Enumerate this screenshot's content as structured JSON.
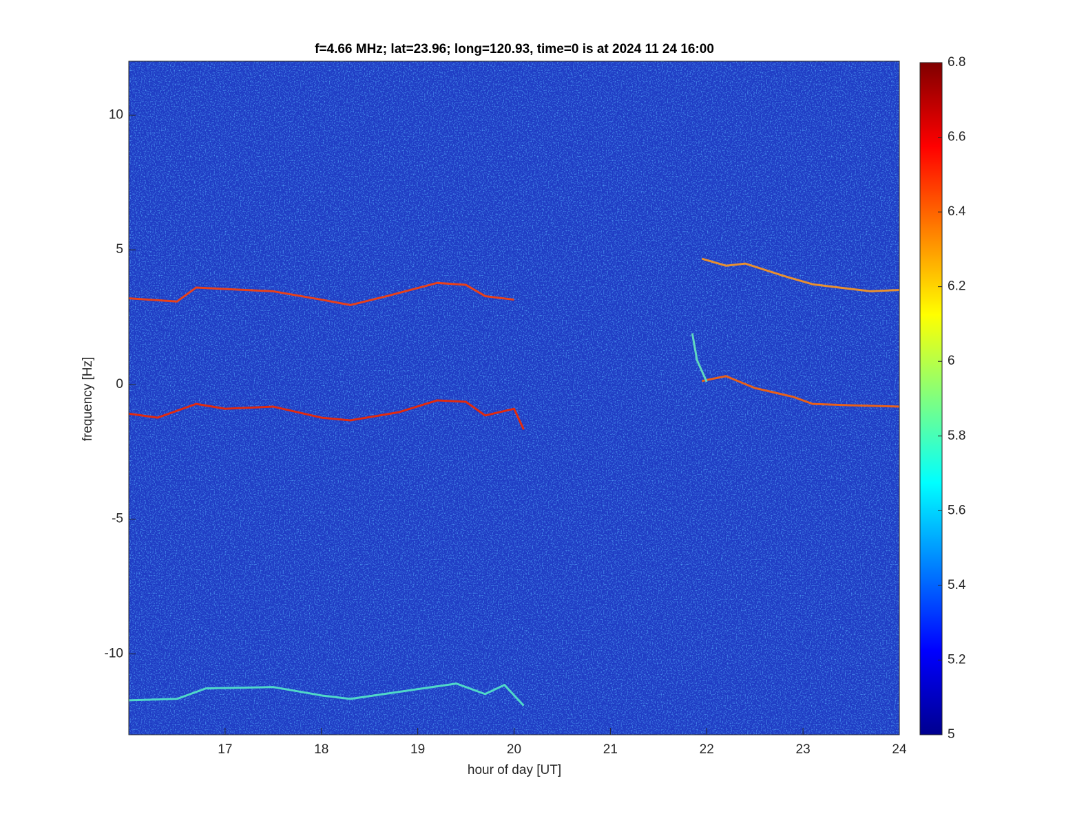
{
  "chart_data": {
    "type": "spectrogram",
    "title": "f=4.66 MHz;  lat=23.96; long=120.93, time=0 is at 2024 11 24 16:00",
    "xlabel": "hour of day [UT]",
    "ylabel": "frequency [Hz]",
    "xlim": [
      16,
      24
    ],
    "xticks": [
      17,
      18,
      19,
      20,
      21,
      22,
      23,
      24
    ],
    "ylim": [
      -13,
      12
    ],
    "yticks": [
      -10,
      -5,
      0,
      5,
      10
    ],
    "colormap": "jet",
    "clim": [
      5,
      6.8
    ],
    "cticks": [
      5,
      5.2,
      5.4,
      5.6,
      5.8,
      6,
      6.2,
      6.4,
      6.6,
      6.8
    ],
    "background_color": "#1f3cc4",
    "series": [
      {
        "color": "#e8401a",
        "x": [
          16,
          16.5,
          16.7,
          17.5,
          18,
          18.3,
          18.7,
          19.2,
          19.5,
          19.7,
          20
        ],
        "values": [
          3.2,
          3.08,
          3.6,
          3.46,
          3.15,
          2.95,
          3.3,
          3.77,
          3.7,
          3.28,
          3.15
        ]
      },
      {
        "color": "#e02a10",
        "x": [
          16,
          16.3,
          16.7,
          17,
          17.5,
          18,
          18.3,
          18.8,
          19.2,
          19.5,
          19.7,
          20,
          20.1
        ],
        "values": [
          -1.08,
          -1.23,
          -0.72,
          -0.9,
          -0.82,
          -1.23,
          -1.33,
          -1.03,
          -0.59,
          -0.64,
          -1.15,
          -0.9,
          -1.67
        ]
      },
      {
        "color": "#50d8c8",
        "x": [
          16,
          16.5,
          16.8,
          17.5,
          18,
          18.3,
          18.8,
          19.4,
          19.7,
          19.9,
          20.1
        ],
        "values": [
          -11.72,
          -11.67,
          -11.28,
          -11.23,
          -11.54,
          -11.67,
          -11.41,
          -11.1,
          -11.49,
          -11.15,
          -11.92
        ]
      },
      {
        "color": "#e89030",
        "x": [
          21.95,
          22.2,
          22.4,
          22.8,
          23.1,
          23.4,
          23.7,
          24
        ],
        "values": [
          4.67,
          4.41,
          4.49,
          4.03,
          3.72,
          3.59,
          3.46,
          3.51
        ]
      },
      {
        "color": "#e8601a",
        "x": [
          21.95,
          22.2,
          22.5,
          22.9,
          23.1,
          23.5,
          24
        ],
        "values": [
          0.13,
          0.31,
          -0.13,
          -0.46,
          -0.72,
          -0.77,
          -0.82
        ]
      },
      {
        "color": "#60d8c0",
        "x": [
          21.85,
          21.9,
          22
        ],
        "values": [
          1.9,
          0.9,
          0.1
        ]
      }
    ]
  }
}
